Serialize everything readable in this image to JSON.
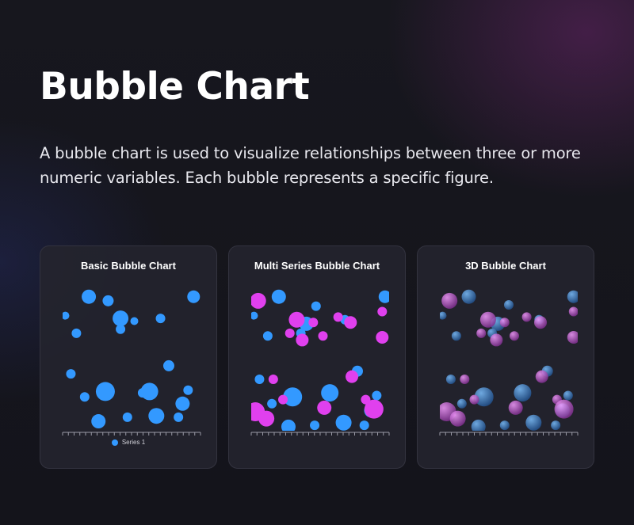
{
  "page": {
    "title": "Bubble Chart",
    "description": "A bubble chart is used to visualize relationships between three or more numeric variables. Each bubble represents a specific figure."
  },
  "colors": {
    "series_blue": "#3399ff",
    "series_magenta": "#e040ee"
  },
  "chart_data": [
    {
      "type": "scatter",
      "variant": "bubble",
      "title": "Basic Bubble Chart",
      "xlim": [
        0,
        100
      ],
      "ylim": [
        0,
        100
      ],
      "legend": "bottom",
      "series": [
        {
          "name": "Series 1",
          "color": "#3399ff",
          "points": [
            [
              2,
              85,
              5
            ],
            [
              10,
              72,
              6
            ],
            [
              19,
              99,
              9
            ],
            [
              33,
              96,
              7
            ],
            [
              42,
              75,
              6
            ],
            [
              42,
              83,
              10
            ],
            [
              52,
              81,
              5
            ],
            [
              71,
              83,
              6
            ],
            [
              6,
              42,
              6
            ],
            [
              16,
              25,
              6
            ],
            [
              31,
              29,
              12
            ],
            [
              58,
              28,
              6
            ],
            [
              63,
              29,
              11
            ],
            [
              77,
              48,
              7
            ],
            [
              91,
              30,
              6
            ],
            [
              26,
              7,
              9
            ],
            [
              47,
              10,
              6
            ],
            [
              68,
              11,
              10
            ],
            [
              84,
              10,
              6
            ],
            [
              87,
              20,
              9
            ],
            [
              95,
              99,
              8
            ]
          ]
        }
      ]
    },
    {
      "type": "scatter",
      "variant": "bubble",
      "title": "Multi Series Bubble Chart",
      "xlim": [
        0,
        100
      ],
      "ylim": [
        0,
        100
      ],
      "legend": "none",
      "series": [
        {
          "color": "#3399ff",
          "points": [
            [
              2,
              85,
              5
            ],
            [
              12,
              70,
              6
            ],
            [
              20,
              99,
              9
            ],
            [
              40,
              79,
              9
            ],
            [
              36,
              72,
              6
            ],
            [
              47,
              92,
              6
            ],
            [
              68,
              82,
              6
            ],
            [
              6,
              38,
              6
            ],
            [
              15,
              20,
              6
            ],
            [
              30,
              25,
              12
            ],
            [
              57,
              28,
              11
            ],
            [
              77,
              44,
              7
            ],
            [
              91,
              26,
              6
            ],
            [
              27,
              3,
              9
            ],
            [
              46,
              4,
              6
            ],
            [
              67,
              6,
              10
            ],
            [
              82,
              4,
              6
            ],
            [
              87,
              15,
              9
            ],
            [
              97,
              99,
              8
            ]
          ]
        },
        {
          "color": "#e040ee",
          "points": [
            [
              5,
              96,
              10
            ],
            [
              33,
              82,
              10
            ],
            [
              45,
              80,
              6
            ],
            [
              37,
              67,
              8
            ],
            [
              28,
              72,
              6
            ],
            [
              63,
              84,
              6
            ],
            [
              72,
              80,
              8
            ],
            [
              52,
              70,
              6
            ],
            [
              95,
              69,
              8
            ],
            [
              95,
              88,
              6
            ],
            [
              16,
              38,
              6
            ],
            [
              23,
              23,
              6
            ],
            [
              3,
              14,
              12
            ],
            [
              11,
              9,
              10
            ],
            [
              53,
              17,
              9
            ],
            [
              73,
              40,
              8
            ],
            [
              83,
              23,
              6
            ],
            [
              89,
              16,
              12
            ]
          ]
        }
      ]
    },
    {
      "type": "scatter",
      "variant": "bubble-3d",
      "title": "3D Bubble Chart",
      "xlim": [
        0,
        100
      ],
      "ylim": [
        0,
        100
      ],
      "legend": "none",
      "series": [
        {
          "color": "#3399ff",
          "points": [
            [
              2,
              85,
              5
            ],
            [
              12,
              70,
              6
            ],
            [
              21,
              99,
              9
            ],
            [
              42,
              79,
              9
            ],
            [
              38,
              72,
              6
            ],
            [
              50,
              93,
              6
            ],
            [
              72,
              82,
              6
            ],
            [
              8,
              38,
              6
            ],
            [
              16,
              20,
              6
            ],
            [
              32,
              25,
              12
            ],
            [
              60,
              28,
              11
            ],
            [
              78,
              44,
              7
            ],
            [
              93,
              26,
              6
            ],
            [
              28,
              3,
              9
            ],
            [
              47,
              4,
              6
            ],
            [
              68,
              6,
              10
            ],
            [
              84,
              4,
              6
            ],
            [
              89,
              15,
              9
            ],
            [
              97,
              99,
              8
            ]
          ]
        },
        {
          "color": "#e040ee",
          "points": [
            [
              7,
              96,
              10
            ],
            [
              35,
              82,
              10
            ],
            [
              47,
              80,
              6
            ],
            [
              41,
              67,
              8
            ],
            [
              30,
              72,
              6
            ],
            [
              63,
              84,
              6
            ],
            [
              73,
              80,
              8
            ],
            [
              54,
              70,
              6
            ],
            [
              97,
              69,
              8
            ],
            [
              97,
              88,
              6
            ],
            [
              18,
              38,
              6
            ],
            [
              25,
              23,
              6
            ],
            [
              5,
              14,
              12
            ],
            [
              13,
              9,
              10
            ],
            [
              55,
              17,
              9
            ],
            [
              74,
              40,
              8
            ],
            [
              85,
              23,
              6
            ],
            [
              90,
              16,
              12
            ]
          ]
        }
      ]
    }
  ]
}
